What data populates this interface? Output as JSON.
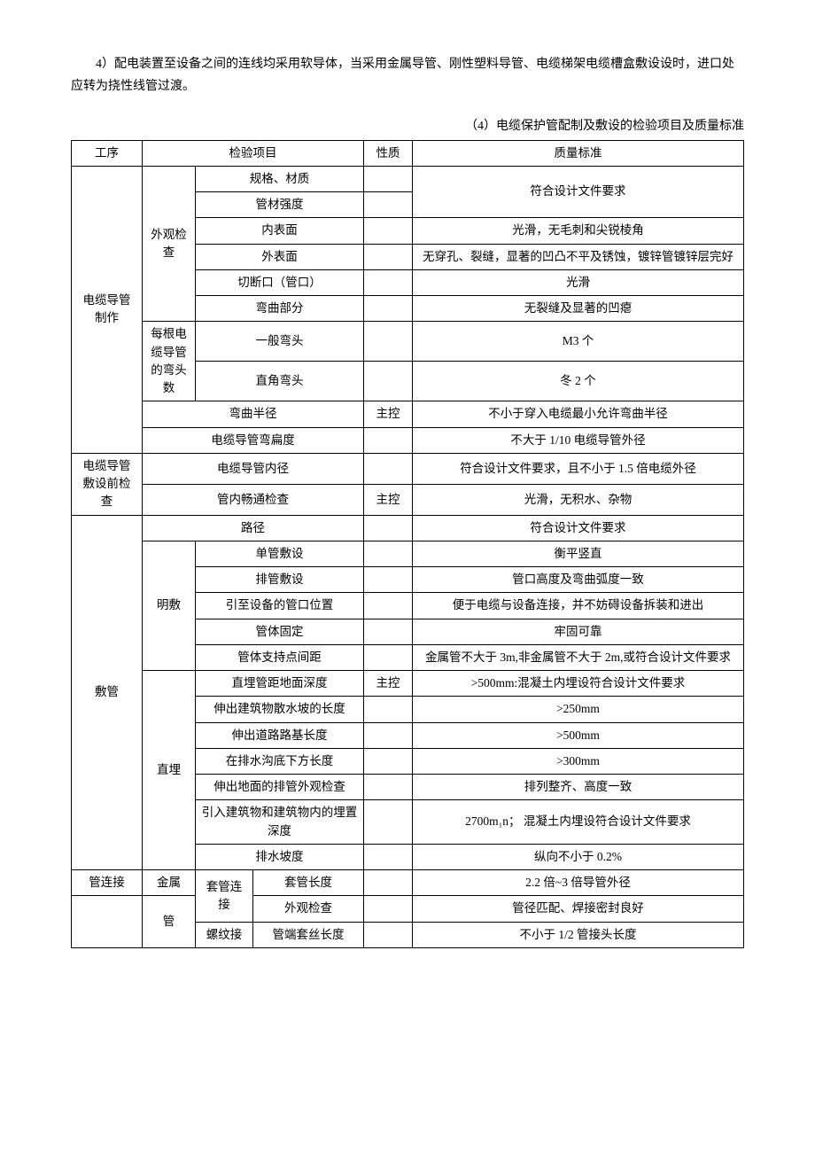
{
  "paragraph": "4）配电装置至设备之间的连线均采用软导体，当采用金属导管、刚性塑料导管、电缆梯架电缆槽盒敷设设时，进口处应转为挠性线管过渡。",
  "caption": "（4）电缆保护管配制及敷设的检验项目及质量标准",
  "header": {
    "c0": "工序",
    "c1": "检验项目",
    "c2": "性质",
    "c3": "质量标准"
  },
  "rows": [
    {
      "c0": "电缆导管制作",
      "c1": "外观检查",
      "c2": "规格、材质",
      "c3": "",
      "c4": "",
      "c5": "符合设计文件要求"
    },
    {
      "c2": "管材强度",
      "c3": "",
      "c4": ""
    },
    {
      "c2": "内表面",
      "c3": "",
      "c4": "",
      "c5": "光滑，无毛刺和尖锐棱角"
    },
    {
      "c2": "外表面",
      "c3": "",
      "c4": "",
      "c5": "无穿孔、裂缝，显著的凹凸不平及锈蚀，镀锌管镀锌层完好"
    },
    {
      "c2": "切断口（管口）",
      "c3": "",
      "c4": "",
      "c5": "光滑"
    },
    {
      "c2": "弯曲部分",
      "c3": "",
      "c4": "",
      "c5": "无裂缝及显著的凹瘪"
    },
    {
      "c1": "每根电缆导管的弯头数",
      "c2": "一般弯头",
      "c3": "",
      "c4": "",
      "c5": "M3 个"
    },
    {
      "c2": "直角弯头",
      "c3": "",
      "c4": "",
      "c5": "冬 2 个"
    },
    {
      "c1": "弯曲半径",
      "c4": "主控",
      "c5": "不小于穿入电缆最小允许弯曲半径"
    },
    {
      "c1": "电缆导管弯扁度",
      "c4": "",
      "c5": "不大于 1/10 电缆导管外径"
    },
    {
      "c0": "电缆导管敷设前检查",
      "c1": "电缆导管内径",
      "c4": "",
      "c5": "符合设计文件要求，且不小于 1.5 倍电缆外径"
    },
    {
      "c1": "管内畅通检查",
      "c4": "主控",
      "c5": "光滑，无积水、杂物"
    },
    {
      "c0": "敷管",
      "c1": "路径",
      "c4": "",
      "c5": "符合设计文件要求"
    },
    {
      "c1": "明敷",
      "c2": "单管敷设",
      "c4": "",
      "c5": "衡平竖直"
    },
    {
      "c2": "排管敷设",
      "c4": "",
      "c5": "管口高度及弯曲弧度一致"
    },
    {
      "c2": "引至设备的管口位置",
      "c4": "",
      "c5": "便于电缆与设备连接，并不妨碍设备拆装和进出"
    },
    {
      "c2": "管体固定",
      "c4": "",
      "c5": "牢固可靠"
    },
    {
      "c2": "管体支持点间距",
      "c4": "",
      "c5": "金属管不大于 3m,非金属管不大于 2m,或符合设计文件要求"
    },
    {
      "c1": "直埋",
      "c2": "直埋管距地面深度",
      "c4": "主控",
      "c5": ">500mm:混凝土内埋设符合设计文件要求"
    },
    {
      "c2": "伸出建筑物散水坡的长度",
      "c4": "",
      "c5": ">250mm"
    },
    {
      "c2": "伸出道路路基长度",
      "c4": "",
      "c5": ">500mm"
    },
    {
      "c2": "在排水沟底下方长度",
      "c4": "",
      "c5": ">300mm"
    },
    {
      "c2": "伸出地面的排管外观检查",
      "c4": "",
      "c5": "排列整齐、高度一致"
    },
    {
      "c2": "引入建筑物和建筑物内的埋置深度",
      "c4": "",
      "c5": "2700m₁n； 混凝土内埋设符合设计文件要求"
    },
    {
      "c2": "排水坡度",
      "c4": "",
      "c5": "纵向不小于 0.2%"
    },
    {
      "c0": "管连接",
      "c1": "金属",
      "c2": "套管连接",
      "c3": "套管长度",
      "c4": "",
      "c5": "2.2 倍~3 倍导管外径"
    },
    {
      "c0": "",
      "c1": "管",
      "c3": "外观检查",
      "c4": "",
      "c5": "管径匹配、焊接密封良好"
    },
    {
      "c2": "螺纹接",
      "c3": "管端套丝长度",
      "c4": "",
      "c5": "不小于 1/2 管接头长度"
    }
  ]
}
